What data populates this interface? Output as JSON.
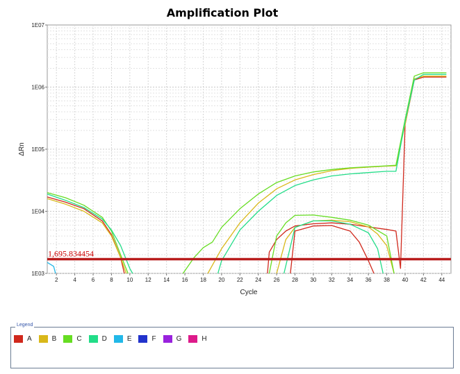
{
  "chart_data": {
    "type": "line",
    "title": "Amplification Plot",
    "xlabel": "Cycle",
    "ylabel": "ΔRn",
    "xlim": [
      1,
      45
    ],
    "ylim": [
      1000,
      10000000
    ],
    "yscale": "log",
    "x_ticks": [
      2,
      4,
      6,
      8,
      10,
      12,
      14,
      16,
      18,
      20,
      22,
      24,
      26,
      28,
      30,
      32,
      34,
      36,
      38,
      40,
      42,
      44
    ],
    "y_ticks": [
      {
        "value": 1000,
        "label": "1E03"
      },
      {
        "value": 10000,
        "label": "1E04"
      },
      {
        "value": 100000,
        "label": "1E05"
      },
      {
        "value": 1000000,
        "label": "1E06"
      },
      {
        "value": 10000000,
        "label": "1E07"
      }
    ],
    "grid": true,
    "threshold": {
      "value": 1695.834454,
      "label": "1,695.834454",
      "color": "#b81c1c"
    },
    "series": [
      {
        "name": "A",
        "color": "#d0281c",
        "segments": [
          {
            "x": [
              1,
              3,
              5,
              7,
              8,
              9,
              9.4
            ],
            "y": [
              17000,
              14000,
              11000,
              7000,
              4200,
              1800,
              1000
            ]
          },
          {
            "x": [
              25,
              25.2,
              26,
              27,
              28,
              30,
              32,
              34,
              36,
              38,
              39,
              39.5,
              40,
              41,
              42,
              43,
              44.5
            ],
            "y": [
              1000,
              2200,
              3500,
              4800,
              5800,
              6300,
              6500,
              6200,
              5600,
              5100,
              4800,
              1200,
              250000,
              1300000,
              1450000,
              1450000,
              1450000
            ]
          },
          {
            "x": [
              27.5,
              28,
              30,
              32,
              34,
              35,
              36,
              36.6
            ],
            "y": [
              1000,
              4800,
              5800,
              5900,
              4800,
              3200,
              1600,
              1000
            ]
          }
        ]
      },
      {
        "name": "B",
        "color": "#d9b81a",
        "segments": [
          {
            "x": [
              1,
              3,
              5,
              7,
              8,
              9,
              9.6
            ],
            "y": [
              16000,
              13000,
              10000,
              6500,
              4000,
              1800,
              1000
            ]
          },
          {
            "x": [
              18.5,
              20,
              22,
              24,
              26,
              28,
              30,
              32,
              34,
              36,
              38,
              39,
              40,
              41,
              42,
              43,
              44.5
            ],
            "y": [
              1000,
              2500,
              6500,
              13500,
              23000,
              32000,
              39000,
              45000,
              49000,
              51500,
              53500,
              54000,
              250000,
              1350000,
              1500000,
              1500000,
              1500000
            ]
          },
          {
            "x": [
              26,
              27,
              28,
              30,
              32,
              34,
              36,
              37,
              38,
              38.8
            ],
            "y": [
              1000,
              3500,
              5500,
              7000,
              7200,
              6800,
              5600,
              4300,
              2800,
              1000
            ]
          }
        ]
      },
      {
        "name": "C",
        "color": "#66dd22",
        "segments": [
          {
            "x": [
              1,
              3,
              5,
              7,
              8,
              9,
              9.8
            ],
            "y": [
              20000,
              16500,
              12500,
              8000,
              4800,
              2000,
              1000
            ]
          },
          {
            "x": [
              15.8,
              17,
              18,
              19,
              20,
              22,
              24,
              26,
              28,
              30,
              32,
              34,
              36,
              38,
              39,
              40,
              41,
              42,
              43,
              44.5
            ],
            "y": [
              1000,
              1800,
              2600,
              3200,
              5500,
              11000,
              19000,
              29000,
              37000,
              43000,
              47000,
              50000,
              52000,
              54000,
              55000,
              300000,
              1500000,
              1700000,
              1700000,
              1700000
            ]
          },
          {
            "x": [
              25.2,
              26,
              27,
              28,
              30,
              32,
              34,
              36,
              38,
              38.8
            ],
            "y": [
              1000,
              4000,
              6500,
              8600,
              8700,
              8000,
              7200,
              6000,
              4000,
              1000
            ]
          }
        ]
      },
      {
        "name": "D",
        "color": "#22dd88",
        "segments": [
          {
            "x": [
              1,
              3,
              5,
              7,
              8,
              9,
              10,
              10.3
            ],
            "y": [
              19000,
              15000,
              11500,
              7500,
              5000,
              2800,
              1200,
              1000
            ]
          },
          {
            "x": [
              19.6,
              20,
              22,
              24,
              26,
              28,
              30,
              32,
              34,
              36,
              38,
              39,
              40,
              41,
              42,
              43,
              44.5
            ],
            "y": [
              1000,
              1600,
              5000,
              10000,
              18000,
              26000,
              32000,
              37000,
              40000,
              42000,
              44000,
              44000,
              280000,
              1300000,
              1600000,
              1600000,
              1600000
            ]
          },
          {
            "x": [
              26.8,
              28,
              30,
              32,
              34,
              36,
              37,
              37.6
            ],
            "y": [
              1000,
              5500,
              7000,
              7000,
              6200,
              4500,
              2500,
              1000
            ]
          }
        ]
      },
      {
        "name": "E",
        "color": "#22b8e8",
        "segments": [
          {
            "x": [
              1,
              1.7,
              1.9
            ],
            "y": [
              1500,
              1300,
              1000
            ]
          }
        ]
      },
      {
        "name": "F",
        "color": "#2233cc",
        "segments": []
      },
      {
        "name": "G",
        "color": "#9922dd",
        "segments": []
      },
      {
        "name": "H",
        "color": "#dd1a8a",
        "segments": []
      }
    ]
  },
  "legend": {
    "title": "Legend",
    "items": [
      {
        "label": "A",
        "color": "#d0281c"
      },
      {
        "label": "B",
        "color": "#d9b81a"
      },
      {
        "label": "C",
        "color": "#66dd22"
      },
      {
        "label": "D",
        "color": "#22dd88"
      },
      {
        "label": "E",
        "color": "#22b8e8"
      },
      {
        "label": "F",
        "color": "#2233cc"
      },
      {
        "label": "G",
        "color": "#9922dd"
      },
      {
        "label": "H",
        "color": "#dd1a8a"
      }
    ]
  }
}
